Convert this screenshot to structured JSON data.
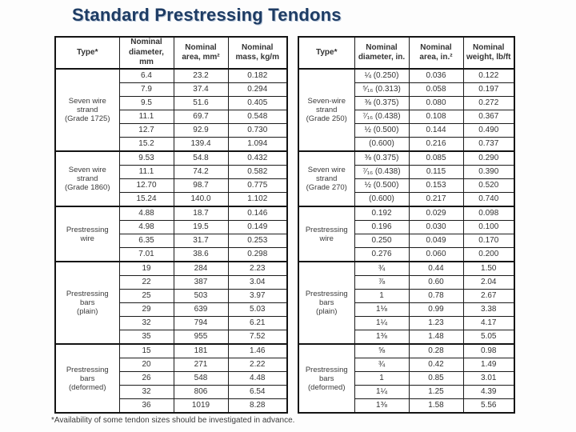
{
  "slide": {
    "title": "Standard Prestressing Tendons",
    "footnote": "*Availability of some tendon sizes should be investigated in advance."
  },
  "metric_table": {
    "headers": [
      "Type*",
      "Nominal\ndiameter, mm",
      "Nominal\narea, mm²",
      "Nominal\nmass, kg/m"
    ],
    "groups": [
      {
        "type": "Seven wire\nstrand\n(Grade 1725)",
        "rows": [
          [
            "6.4",
            "23.2",
            "0.182"
          ],
          [
            "7.9",
            "37.4",
            "0.294"
          ],
          [
            "9.5",
            "51.6",
            "0.405"
          ],
          [
            "11.1",
            "69.7",
            "0.548"
          ],
          [
            "12.7",
            "92.9",
            "0.730"
          ],
          [
            "15.2",
            "139.4",
            "1.094"
          ]
        ]
      },
      {
        "type": "Seven wire\nstrand\n(Grade 1860)",
        "rows": [
          [
            "9.53",
            "54.8",
            "0.432"
          ],
          [
            "11.1",
            "74.2",
            "0.582"
          ],
          [
            "12.70",
            "98.7",
            "0.775"
          ],
          [
            "15.24",
            "140.0",
            "1.102"
          ]
        ]
      },
      {
        "type": "Prestressing\nwire",
        "rows": [
          [
            "4.88",
            "18.7",
            "0.146"
          ],
          [
            "4.98",
            "19.5",
            "0.149"
          ],
          [
            "6.35",
            "31.7",
            "0.253"
          ],
          [
            "7.01",
            "38.6",
            "0.298"
          ]
        ]
      },
      {
        "type": "Prestressing\nbars\n(plain)",
        "rows": [
          [
            "19",
            "284",
            "2.23"
          ],
          [
            "22",
            "387",
            "3.04"
          ],
          [
            "25",
            "503",
            "3.97"
          ],
          [
            "29",
            "639",
            "5.03"
          ],
          [
            "32",
            "794",
            "6.21"
          ],
          [
            "35",
            "955",
            "7.52"
          ]
        ]
      },
      {
        "type": "Prestressing\nbars\n(deformed)",
        "rows": [
          [
            "15",
            "181",
            "1.46"
          ],
          [
            "20",
            "271",
            "2.22"
          ],
          [
            "26",
            "548",
            "4.48"
          ],
          [
            "32",
            "806",
            "6.54"
          ],
          [
            "36",
            "1019",
            "8.28"
          ]
        ]
      }
    ]
  },
  "imperial_table": {
    "headers": [
      "Type*",
      "Nominal\ndiameter, in.",
      "Nominal\narea, in.²",
      "Nominal\nweight, lb/ft"
    ],
    "groups": [
      {
        "type": "Seven-wire\nstrand\n(Grade 250)",
        "rows": [
          [
            "¼ (0.250)",
            "0.036",
            "0.122"
          ],
          [
            "⁵⁄₁₆ (0.313)",
            "0.058",
            "0.197"
          ],
          [
            "⅜ (0.375)",
            "0.080",
            "0.272"
          ],
          [
            "⁷⁄₁₆ (0.438)",
            "0.108",
            "0.367"
          ],
          [
            "½ (0.500)",
            "0.144",
            "0.490"
          ],
          [
            "(0.600)",
            "0.216",
            "0.737"
          ]
        ]
      },
      {
        "type": "Seven wire\nstrand\n(Grade 270)",
        "rows": [
          [
            "⅜ (0.375)",
            "0.085",
            "0.290"
          ],
          [
            "⁷⁄₁₆ (0.438)",
            "0.115",
            "0.390"
          ],
          [
            "½ (0.500)",
            "0.153",
            "0.520"
          ],
          [
            "(0.600)",
            "0.217",
            "0.740"
          ]
        ]
      },
      {
        "type": "Prestressing\nwire",
        "rows": [
          [
            "0.192",
            "0.029",
            "0.098"
          ],
          [
            "0.196",
            "0.030",
            "0.100"
          ],
          [
            "0.250",
            "0.049",
            "0.170"
          ],
          [
            "0.276",
            "0.060",
            "0.200"
          ]
        ]
      },
      {
        "type": "Prestressing\nbars\n(plain)",
        "rows": [
          [
            "¾",
            "0.44",
            "1.50"
          ],
          [
            "⅞",
            "0.60",
            "2.04"
          ],
          [
            "1",
            "0.78",
            "2.67"
          ],
          [
            "1⅛",
            "0.99",
            "3.38"
          ],
          [
            "1¼",
            "1.23",
            "4.17"
          ],
          [
            "1⅜",
            "1.48",
            "5.05"
          ]
        ]
      },
      {
        "type": "Prestressing\nbars\n(deformed)",
        "rows": [
          [
            "⅝",
            "0.28",
            "0.98"
          ],
          [
            "¾",
            "0.42",
            "1.49"
          ],
          [
            "1",
            "0.85",
            "3.01"
          ],
          [
            "1¼",
            "1.25",
            "4.39"
          ],
          [
            "1⅜",
            "1.58",
            "5.56"
          ]
        ]
      }
    ]
  }
}
